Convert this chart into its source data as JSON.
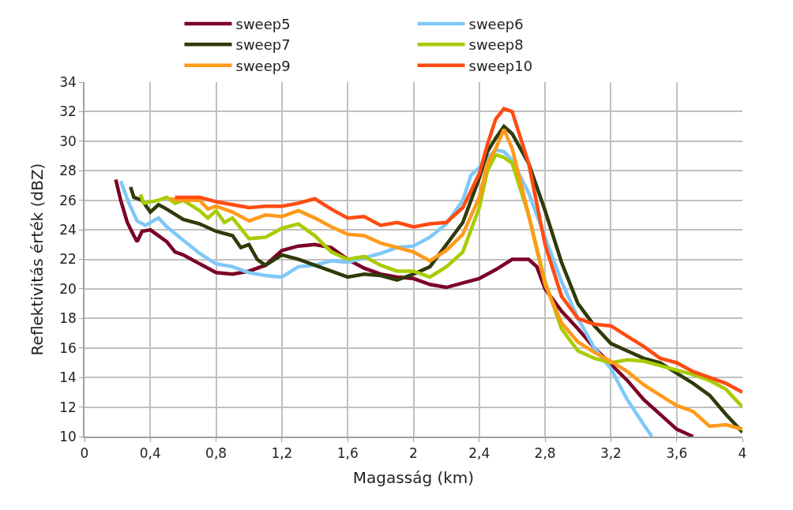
{
  "chart_data": {
    "type": "line",
    "xlabel": "Magasság (km)",
    "ylabel": "Reflektivitás érték (dBZ)",
    "xlim": [
      0,
      4
    ],
    "ylim": [
      10,
      34
    ],
    "xticks": [
      0,
      {
        "value": 0.4,
        "label": "0,4"
      },
      {
        "value": 0.8,
        "label": "0,8"
      },
      {
        "value": 1.2,
        "label": "1,2"
      },
      {
        "value": 1.6,
        "label": "1,6"
      },
      2,
      {
        "value": 2.4,
        "label": "2,4"
      },
      {
        "value": 2.8,
        "label": "2,8"
      },
      {
        "value": 3.2,
        "label": "3,2"
      },
      {
        "value": 3.6,
        "label": "3,6"
      },
      4
    ],
    "yticks": [
      10,
      12,
      14,
      16,
      18,
      20,
      22,
      24,
      26,
      28,
      30,
      32,
      34
    ],
    "grid": true,
    "legend": "top",
    "marker": "none",
    "line_style": "solid",
    "series": [
      {
        "name": "sweep5",
        "color": "#7b0026",
        "x": [
          0.19,
          0.22,
          0.26,
          0.3,
          0.32,
          0.35,
          0.4,
          0.45,
          0.5,
          0.55,
          0.6,
          0.7,
          0.8,
          0.9,
          1.0,
          1.1,
          1.2,
          1.3,
          1.4,
          1.5,
          1.6,
          1.7,
          1.8,
          1.9,
          2.0,
          2.1,
          2.2,
          2.3,
          2.4,
          2.5,
          2.6,
          2.7,
          2.75,
          2.8,
          2.9,
          3.0,
          3.1,
          3.2,
          3.3,
          3.4,
          3.5,
          3.6,
          3.7
        ],
        "values": [
          27.4,
          26,
          24.5,
          23.6,
          23.2,
          23.9,
          24,
          23.6,
          23.2,
          22.5,
          22.3,
          21.7,
          21.1,
          21,
          21.2,
          21.6,
          22.6,
          22.9,
          23,
          22.8,
          22,
          21.4,
          21,
          20.8,
          20.7,
          20.3,
          20.1,
          20.4,
          20.7,
          21.3,
          22,
          22,
          21.5,
          20,
          18.5,
          17.3,
          16,
          14.9,
          13.8,
          12.5,
          11.5,
          10.5,
          10
        ]
      },
      {
        "name": "sweep6",
        "color": "#7fc8f8",
        "x": [
          0.22,
          0.27,
          0.32,
          0.37,
          0.45,
          0.5,
          0.6,
          0.7,
          0.8,
          0.9,
          1.0,
          1.1,
          1.2,
          1.3,
          1.4,
          1.5,
          1.6,
          1.7,
          1.8,
          1.9,
          2.0,
          2.1,
          2.2,
          2.3,
          2.35,
          2.4,
          2.45,
          2.5,
          2.55,
          2.6,
          2.7,
          2.8,
          2.9,
          3.0,
          3.1,
          3.2,
          3.3,
          3.4,
          3.45
        ],
        "values": [
          27.3,
          25.8,
          24.6,
          24.3,
          24.8,
          24.2,
          23.3,
          22.4,
          21.7,
          21.5,
          21.1,
          20.9,
          20.8,
          21.5,
          21.6,
          21.9,
          21.8,
          22.1,
          22.4,
          22.8,
          22.9,
          23.5,
          24.4,
          26,
          27.7,
          28.2,
          28.9,
          29.4,
          29.3,
          28.7,
          26.5,
          23.5,
          20.5,
          18,
          16,
          14.6,
          12.5,
          10.8,
          10
        ]
      },
      {
        "name": "sweep7",
        "color": "#2e3b0a",
        "x": [
          0.28,
          0.3,
          0.35,
          0.4,
          0.45,
          0.5,
          0.6,
          0.7,
          0.8,
          0.9,
          0.95,
          1.0,
          1.05,
          1.1,
          1.2,
          1.3,
          1.4,
          1.5,
          1.6,
          1.7,
          1.8,
          1.9,
          2.0,
          2.1,
          2.2,
          2.3,
          2.4,
          2.45,
          2.5,
          2.55,
          2.6,
          2.7,
          2.8,
          2.9,
          3.0,
          3.1,
          3.2,
          3.3,
          3.4,
          3.5,
          3.6,
          3.7,
          3.8,
          3.9,
          4.0
        ],
        "values": [
          26.9,
          26.2,
          26,
          25.2,
          25.7,
          25.4,
          24.7,
          24.4,
          23.9,
          23.6,
          22.8,
          23,
          22,
          21.6,
          22.3,
          22,
          21.6,
          21.2,
          20.8,
          21,
          20.9,
          20.6,
          21,
          21.5,
          23,
          24.5,
          27.5,
          29.3,
          30.2,
          31,
          30.5,
          28.5,
          25.3,
          21.8,
          19,
          17.5,
          16.3,
          15.8,
          15.3,
          15,
          14.3,
          13.6,
          12.8,
          11.5,
          10.3
        ]
      },
      {
        "name": "sweep8",
        "color": "#a8cc00",
        "x": [
          0.34,
          0.36,
          0.45,
          0.5,
          0.55,
          0.6,
          0.7,
          0.75,
          0.8,
          0.85,
          0.9,
          1.0,
          1.1,
          1.2,
          1.3,
          1.4,
          1.5,
          1.6,
          1.7,
          1.8,
          1.9,
          2.0,
          2.1,
          2.2,
          2.3,
          2.4,
          2.45,
          2.5,
          2.55,
          2.6,
          2.7,
          2.8,
          2.9,
          3.0,
          3.1,
          3.2,
          3.3,
          3.4,
          3.5,
          3.6,
          3.7,
          3.8,
          3.9,
          4.0
        ],
        "values": [
          26.4,
          25.8,
          26,
          26.2,
          25.8,
          26,
          25.3,
          24.8,
          25.3,
          24.5,
          24.8,
          23.4,
          23.5,
          24.1,
          24.4,
          23.6,
          22.5,
          22,
          22.2,
          21.6,
          21.2,
          21.2,
          20.8,
          21.5,
          22.5,
          25.5,
          28,
          29.1,
          28.9,
          28.5,
          25,
          20.5,
          17.3,
          15.8,
          15.3,
          15,
          15.2,
          15.1,
          14.8,
          14.5,
          14.2,
          13.8,
          13.2,
          12
        ]
      },
      {
        "name": "sweep9",
        "color": "#ff9a1a",
        "x": [
          0.52,
          0.6,
          0.7,
          0.75,
          0.8,
          0.9,
          1.0,
          1.1,
          1.2,
          1.3,
          1.4,
          1.5,
          1.6,
          1.7,
          1.8,
          1.9,
          2.0,
          2.1,
          2.2,
          2.3,
          2.4,
          2.45,
          2.5,
          2.55,
          2.6,
          2.7,
          2.8,
          2.9,
          3.0,
          3.1,
          3.2,
          3.3,
          3.4,
          3.5,
          3.6,
          3.7,
          3.8,
          3.9,
          4.0
        ],
        "values": [
          26.1,
          26,
          26,
          25.4,
          25.6,
          25.2,
          24.6,
          25,
          24.9,
          25.3,
          24.8,
          24.2,
          23.7,
          23.6,
          23.1,
          22.8,
          22.5,
          21.9,
          22.6,
          23.7,
          26.2,
          28.5,
          29.5,
          30.8,
          29.5,
          25,
          20.3,
          17.7,
          16.4,
          15.7,
          15.1,
          14.4,
          13.5,
          12.8,
          12.1,
          11.7,
          10.7,
          10.8,
          10.5
        ]
      },
      {
        "name": "sweep10",
        "color": "#ff4b11",
        "x": [
          0.55,
          0.7,
          0.8,
          0.9,
          1.0,
          1.1,
          1.2,
          1.3,
          1.4,
          1.5,
          1.6,
          1.7,
          1.8,
          1.9,
          2.0,
          2.1,
          2.2,
          2.3,
          2.4,
          2.45,
          2.5,
          2.55,
          2.6,
          2.7,
          2.8,
          2.9,
          3.0,
          3.1,
          3.2,
          3.3,
          3.4,
          3.5,
          3.6,
          3.7,
          3.8,
          3.9,
          4.0
        ],
        "values": [
          26.2,
          26.2,
          25.9,
          25.7,
          25.5,
          25.6,
          25.6,
          25.8,
          26.1,
          25.4,
          24.8,
          24.9,
          24.3,
          24.5,
          24.2,
          24.4,
          24.5,
          25.5,
          27.8,
          29.8,
          31.5,
          32.2,
          32,
          28.5,
          23,
          19.5,
          18,
          17.6,
          17.5,
          16.8,
          16.1,
          15.3,
          15,
          14.4,
          14,
          13.6,
          13
        ]
      }
    ]
  }
}
